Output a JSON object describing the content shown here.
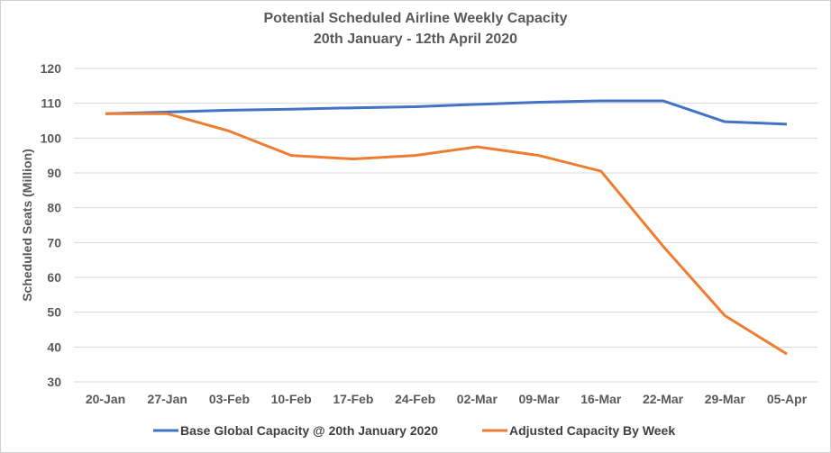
{
  "chart_data": {
    "type": "line",
    "title": "Potential Scheduled Airline Weekly Capacity",
    "subtitle": "20th January - 12th April 2020",
    "xlabel": "",
    "ylabel": "Scheduled Seats (Million)",
    "ylim": [
      30,
      120
    ],
    "yticks": [
      30,
      40,
      50,
      60,
      70,
      80,
      90,
      100,
      110,
      120
    ],
    "grid": true,
    "legend_position": "bottom",
    "categories": [
      "20-Jan",
      "27-Jan",
      "03-Feb",
      "10-Feb",
      "17-Feb",
      "24-Feb",
      "02-Mar",
      "09-Mar",
      "16-Mar",
      "22-Mar",
      "29-Mar",
      "05-Apr"
    ],
    "series": [
      {
        "name": "Base Global Capacity @ 20th January 2020",
        "color": "#4472C4",
        "values": [
          107,
          107.5,
          108,
          108.3,
          108.7,
          109,
          109.7,
          110.3,
          110.7,
          110.7,
          104.7,
          104
        ]
      },
      {
        "name": "Adjusted Capacity By Week",
        "color": "#ED7D31",
        "values": [
          107,
          107,
          102,
          95,
          94,
          95,
          97.5,
          95,
          90.5,
          69,
          49,
          38
        ]
      }
    ]
  }
}
